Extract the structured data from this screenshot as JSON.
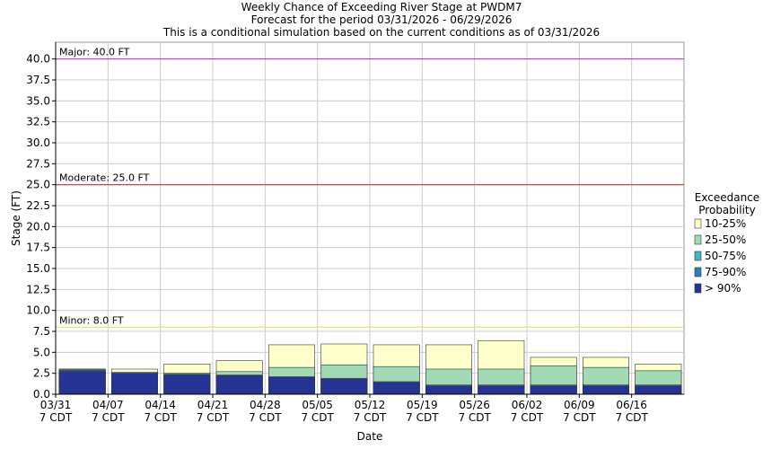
{
  "chart_data": {
    "type": "bar",
    "title": "Weekly Chance of Exceeding River Stage at PWDM7",
    "subtitle": "Forecast for the period 03/31/2026 - 06/29/2026",
    "subtitle2": "This is a conditional simulation based on the current conditions as of 03/31/2026",
    "x_label": "Date",
    "y_label": "Stage (FT)",
    "categories": [
      "03/31",
      "04/07",
      "04/14",
      "04/21",
      "04/28",
      "05/05",
      "05/12",
      "05/19",
      "05/26",
      "06/02",
      "06/09",
      "06/16"
    ],
    "time_label": "7 CDT",
    "legend_title": [
      "Exceedance",
      "Probability"
    ],
    "series": [
      {
        "name": "10-25%",
        "color": "#ffffcc",
        "values": [
          3.0,
          3.0,
          3.6,
          4.0,
          5.9,
          6.0,
          5.9,
          5.9,
          6.4,
          4.4,
          4.4,
          3.6
        ]
      },
      {
        "name": "25-50%",
        "color": "#a1dab4",
        "values": [
          3.0,
          2.6,
          2.5,
          2.7,
          3.2,
          3.5,
          3.3,
          3.0,
          3.0,
          3.4,
          3.2,
          2.8
        ]
      },
      {
        "name": "50-75%",
        "color": "#41b6c4",
        "values": [
          2.9,
          2.6,
          2.4,
          2.3,
          2.1,
          1.9,
          1.5,
          1.1,
          1.1,
          1.1,
          1.1,
          1.1
        ]
      },
      {
        "name": "75-90%",
        "color": "#2c7fb8",
        "values": [
          2.8,
          2.5,
          2.3,
          2.2,
          2.0,
          1.8,
          1.4,
          1.0,
          1.0,
          1.0,
          1.0,
          1.0
        ]
      },
      {
        "name": "> 90%",
        "color": "#253494",
        "values": [
          2.7,
          2.5,
          2.3,
          2.2,
          2.0,
          1.8,
          1.4,
          1.0,
          1.0,
          1.0,
          1.0,
          1.0
        ]
      }
    ],
    "thresholds": [
      {
        "label": "Major: 40.0 FT",
        "value": 40,
        "color": "#cc33cc"
      },
      {
        "label": "Moderate: 25.0 FT",
        "value": 25,
        "color": "#cc3333"
      },
      {
        "label": "Minor: 8.0 FT",
        "value": 8,
        "color": "#e6e650"
      }
    ],
    "ylim": [
      0,
      42
    ],
    "yticks": [
      {
        "value": 0,
        "label": "0.0"
      },
      {
        "value": 2.5,
        "label": "2.5"
      },
      {
        "value": 5,
        "label": "5.0"
      },
      {
        "value": 7.5,
        "label": "7.5"
      },
      {
        "value": 10,
        "label": "10.0"
      },
      {
        "value": 12.5,
        "label": "12.5"
      },
      {
        "value": 15,
        "label": "15.0"
      },
      {
        "value": 17.5,
        "label": "17.5"
      },
      {
        "value": 20,
        "label": "20.0"
      },
      {
        "value": 22.5,
        "label": "22.5"
      },
      {
        "value": 25,
        "label": "25.0"
      },
      {
        "value": 27.5,
        "label": "27.5"
      },
      {
        "value": 30,
        "label": "30.0"
      },
      {
        "value": 32.5,
        "label": "32.5"
      },
      {
        "value": 35,
        "label": "35.0"
      },
      {
        "value": 37.5,
        "label": "37.5"
      },
      {
        "value": 40,
        "label": "40.0"
      }
    ],
    "grid": true
  }
}
